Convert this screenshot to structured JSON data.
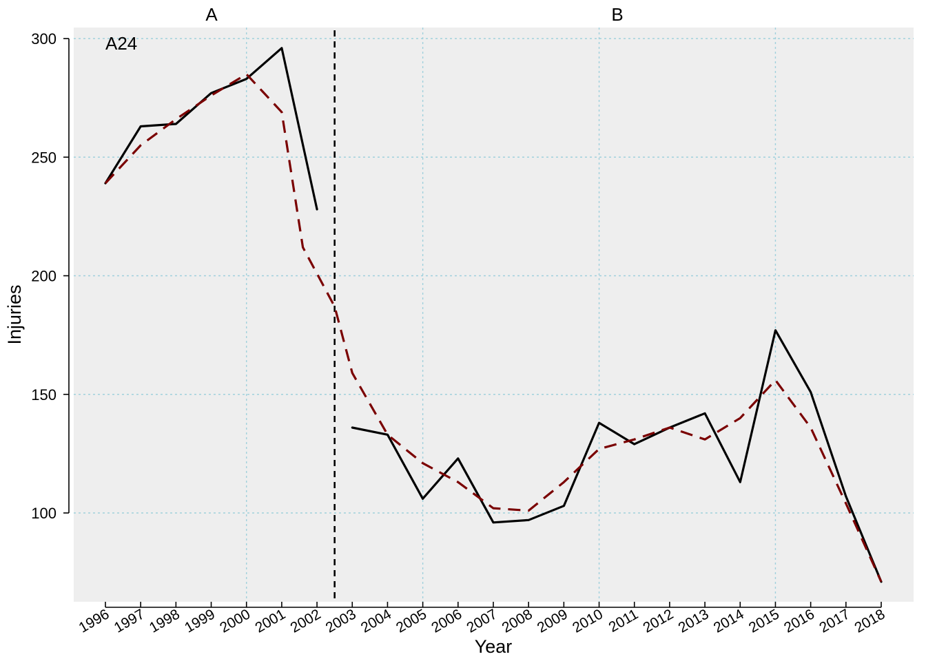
{
  "chart_data": {
    "type": "line",
    "annotation": "A24",
    "panel_labels": [
      "A",
      "B"
    ],
    "xlabel": "Year",
    "ylabel": "Injuries",
    "ylim": [
      62,
      300
    ],
    "y_ticks": [
      100,
      150,
      200,
      250,
      300
    ],
    "categories": [
      1996,
      1997,
      1998,
      1999,
      2000,
      2001,
      2002,
      2003,
      2004,
      2005,
      2006,
      2007,
      2008,
      2009,
      2010,
      2011,
      2012,
      2013,
      2014,
      2015,
      2016,
      2017,
      2018
    ],
    "grid": true,
    "breakpoint_between": [
      2002,
      2003
    ],
    "series": [
      {
        "style": "solid",
        "color": "#000000",
        "segments": [
          {
            "x": [
              1996,
              1997,
              1998,
              1999,
              2000,
              2001,
              2002
            ],
            "y": [
              239,
              263,
              264,
              277,
              283,
              296,
              228
            ]
          },
          {
            "x": [
              2003,
              2004,
              2005,
              2006,
              2007,
              2008,
              2009,
              2010,
              2011,
              2012,
              2013,
              2014,
              2015,
              2016,
              2017,
              2018
            ],
            "y": [
              136,
              133,
              106,
              123,
              96,
              97,
              103,
              138,
              129,
              136,
              142,
              113,
              177,
              151,
              107,
              71
            ]
          }
        ]
      },
      {
        "style": "dashed",
        "color": "#7a0000",
        "segments": [
          {
            "x": [
              1996,
              1997,
              1998,
              1999,
              2000,
              2001,
              2001.6,
              2002.5,
              2003,
              2004,
              2005,
              2006,
              2007,
              2008,
              2009,
              2010,
              2011,
              2012,
              2013,
              2014,
              2015,
              2016,
              2017,
              2018
            ],
            "y": [
              239,
              255,
              266,
              276,
              285,
              269,
              212,
              187,
              159,
              133,
              121,
              113,
              102,
              101,
              113,
              127,
              131,
              136,
              131,
              140,
              156,
              136,
              104,
              71
            ]
          }
        ]
      }
    ]
  }
}
